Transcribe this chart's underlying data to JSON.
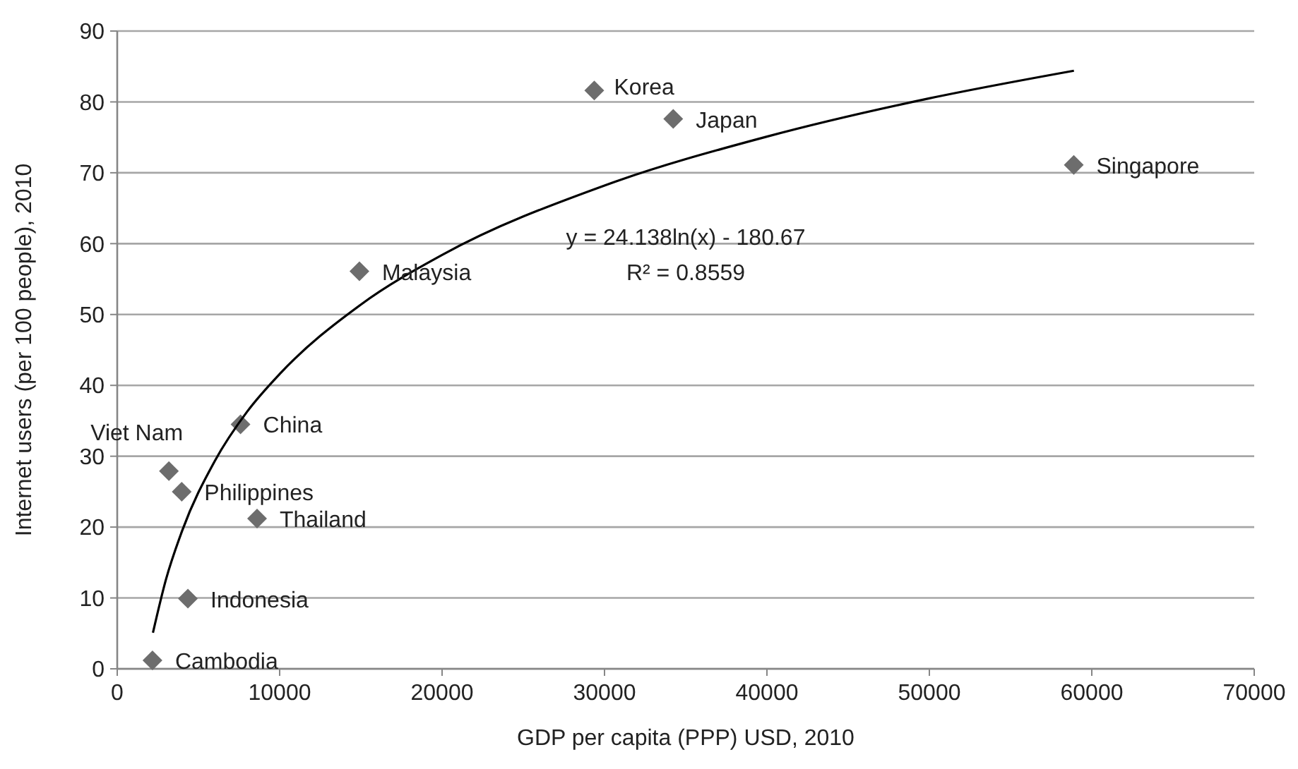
{
  "chart_data": {
    "type": "scatter",
    "xlabel": "GDP per capita (PPP) USD, 2010",
    "ylabel": "Internet users (per 100 people), 2010",
    "xlim": [
      0,
      70000
    ],
    "xticks": [
      0,
      10000,
      20000,
      30000,
      40000,
      50000,
      60000,
      70000
    ],
    "ylim": [
      0,
      90
    ],
    "yticks": [
      0,
      10,
      20,
      30,
      40,
      50,
      60,
      70,
      80,
      90
    ],
    "grid": "y",
    "series": [
      {
        "color": "#6d6d6d",
        "marker": "diamond",
        "x": [
          2170,
          4350,
          3183,
          3970,
          8610,
          7590,
          14910,
          29370,
          34230,
          58890
        ],
        "values": [
          1.2,
          9.9,
          27.9,
          25.0,
          21.2,
          34.5,
          56.1,
          81.6,
          77.6,
          71.1
        ]
      },
      {
        "type": "line",
        "color": "#000000",
        "marker": "none",
        "line_style": "solid",
        "x": [
          2200,
          3000,
          4000,
          6000,
          8000,
          10000,
          15000,
          20000,
          30000,
          40000,
          50000,
          58900
        ],
        "values": [
          5.1,
          12.6,
          19.5,
          29.3,
          36.3,
          41.6,
          51.4,
          58.4,
          68.2,
          75.1,
          80.5,
          84.4
        ]
      }
    ],
    "annotations": [
      {
        "text": "Cambodia",
        "x": 2170,
        "y": 1.2
      },
      {
        "text": "Indonesia",
        "x": 4350,
        "y": 9.9
      },
      {
        "text": "Viet Nam",
        "x": 3183,
        "y": 27.9
      },
      {
        "text": "Philippines",
        "x": 3970,
        "y": 25.0
      },
      {
        "text": "Thailand",
        "x": 8610,
        "y": 21.2
      },
      {
        "text": "China",
        "x": 7590,
        "y": 34.5
      },
      {
        "text": "Malaysia",
        "x": 14910,
        "y": 56.1
      },
      {
        "text": "Korea",
        "x": 29370,
        "y": 81.6
      },
      {
        "text": "Japan",
        "x": 34230,
        "y": 77.6
      },
      {
        "text": "Singapore",
        "x": 58890,
        "y": 71.1
      },
      "y = 24.138ln(x) - 180.67",
      "R² = 0.8559"
    ]
  }
}
